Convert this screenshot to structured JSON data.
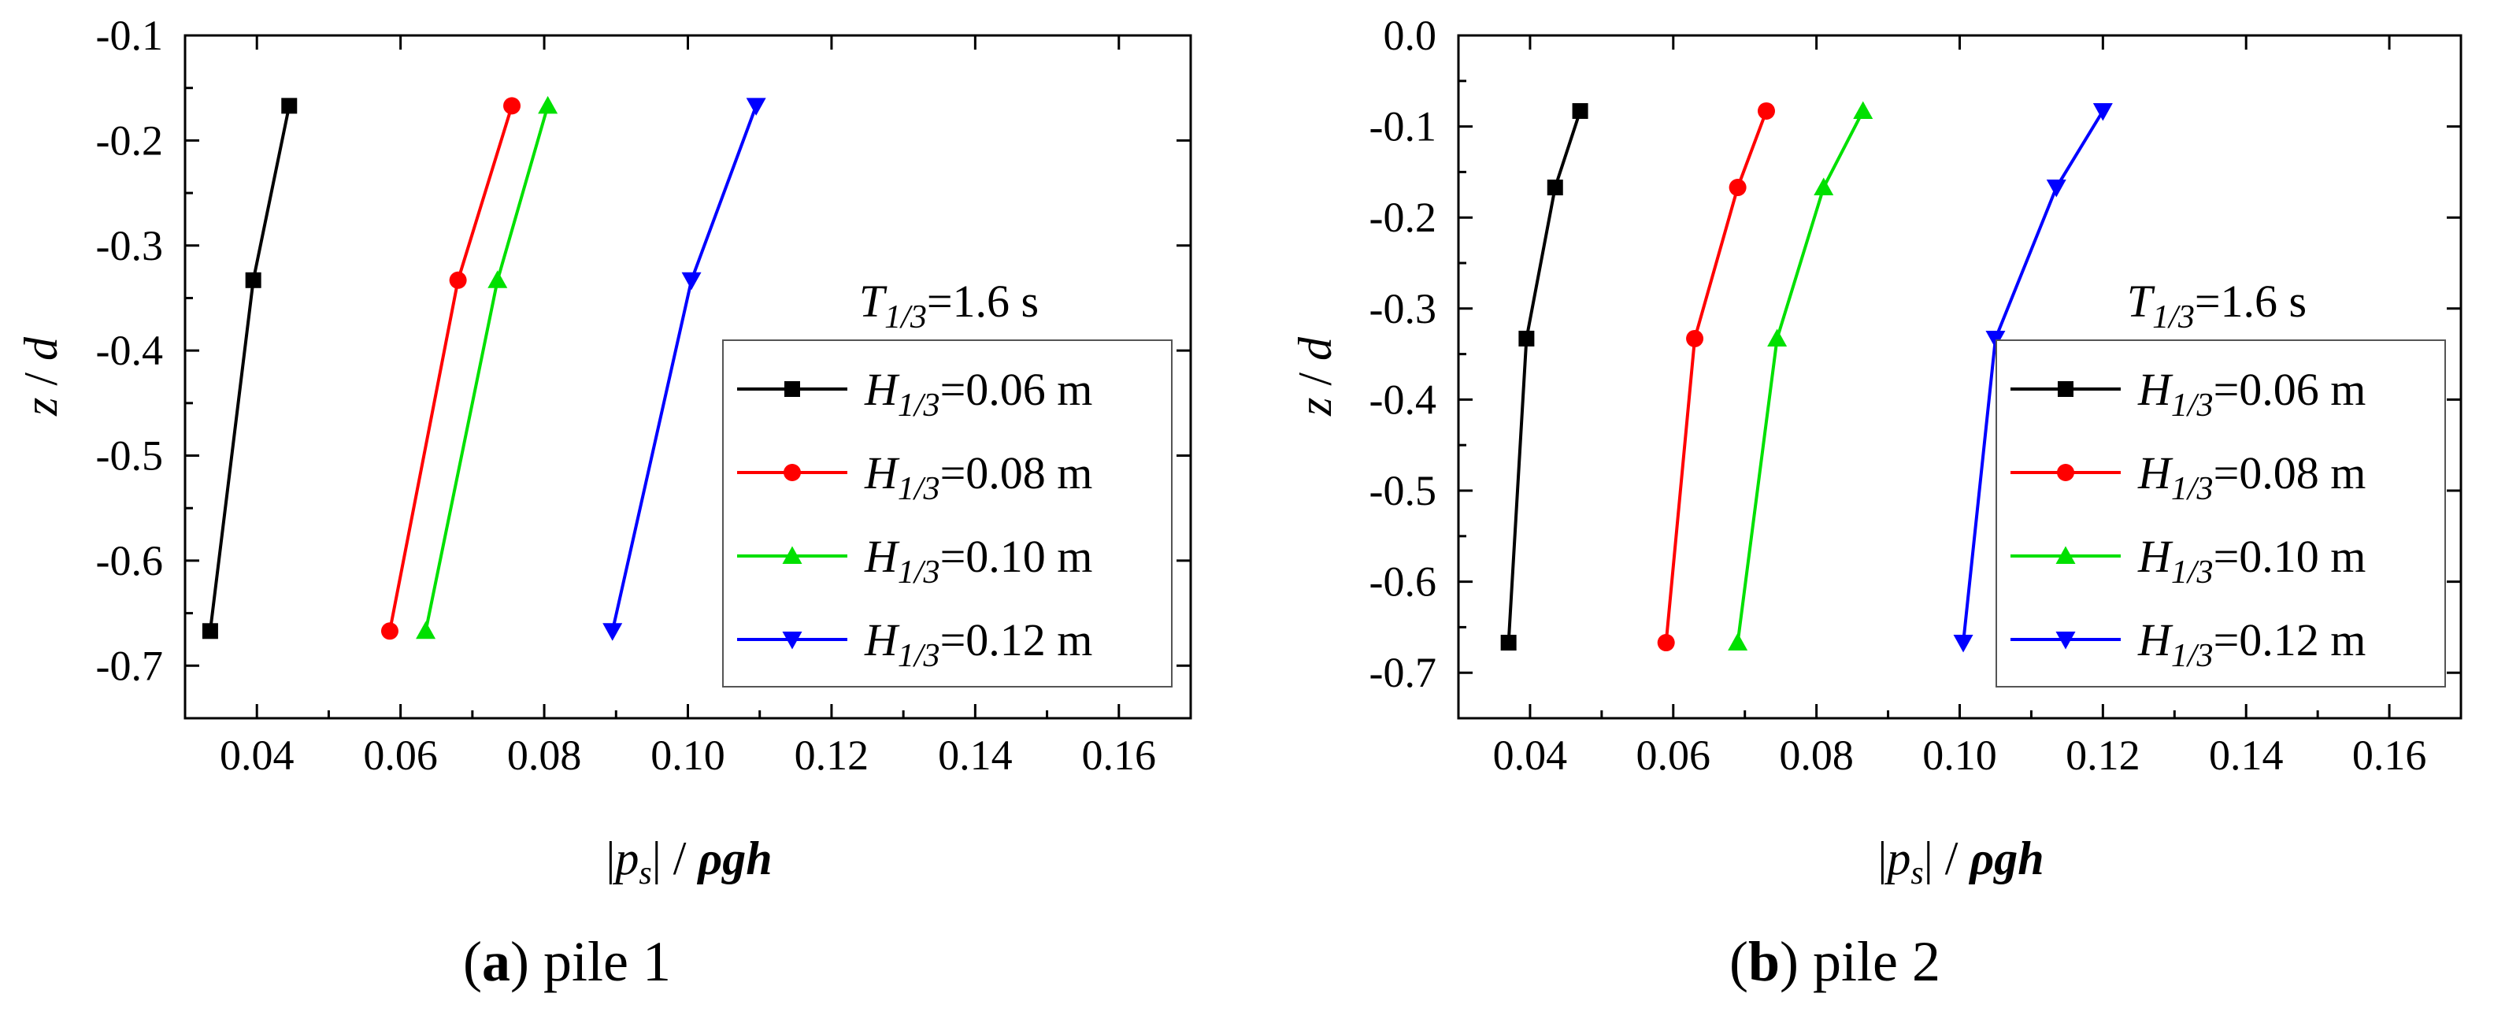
{
  "chart_data": [
    {
      "type": "line",
      "caption_letter": "(a)",
      "caption_text": " pile 1",
      "xlabel_parts": [
        "|",
        "p",
        "s",
        "| / ",
        "ρgh"
      ],
      "ylabel_parts": [
        "z",
        " / ",
        "d"
      ],
      "xlim": [
        0.03,
        0.17
      ],
      "ylim": [
        -0.75,
        -0.1
      ],
      "xticks": [
        0.04,
        0.06,
        0.08,
        0.1,
        0.12,
        0.14,
        0.16
      ],
      "xtick_labels": [
        "0.04",
        "0.06",
        "0.08",
        "0.10",
        "0.12",
        "0.14",
        "0.16"
      ],
      "yticks": [
        -0.1,
        -0.2,
        -0.3,
        -0.4,
        -0.5,
        -0.6,
        -0.7
      ],
      "ytick_labels": [
        "-0.1",
        "-0.2",
        "-0.3",
        "-0.4",
        "-0.5",
        "-0.6",
        "-0.7"
      ],
      "annotation": {
        "var": "T",
        "sub": "1/3",
        "rest": "=1.6 s"
      },
      "series": [
        {
          "name": "H1/3=0.06 m",
          "var": "H",
          "sub": "1/3",
          "value_text": "=0.06 m",
          "color": "#000000",
          "marker": "square",
          "x": [
            0.0445,
            0.0395,
            0.0335
          ],
          "y": [
            -0.167,
            -0.333,
            -0.667
          ]
        },
        {
          "name": "H1/3=0.08 m",
          "var": "H",
          "sub": "1/3",
          "value_text": "=0.08 m",
          "color": "#ff0000",
          "marker": "circle",
          "x": [
            0.0755,
            0.068,
            0.0585
          ],
          "y": [
            -0.167,
            -0.333,
            -0.667
          ]
        },
        {
          "name": "H1/3=0.10 m",
          "var": "H",
          "sub": "1/3",
          "value_text": "=0.10 m",
          "color": "#00e000",
          "marker": "triangle-up",
          "x": [
            0.0805,
            0.0735,
            0.0635
          ],
          "y": [
            -0.167,
            -0.333,
            -0.667
          ]
        },
        {
          "name": "H1/3=0.12 m",
          "var": "H",
          "sub": "1/3",
          "value_text": "=0.12 m",
          "color": "#0000ff",
          "marker": "triangle-down",
          "x": [
            0.1095,
            0.1005,
            0.0895
          ],
          "y": [
            -0.167,
            -0.333,
            -0.667
          ]
        }
      ]
    },
    {
      "type": "line",
      "caption_letter": "(b)",
      "caption_text": " pile 2",
      "xlabel_parts": [
        "|",
        "p",
        "s",
        "| / ",
        "ρgh"
      ],
      "ylabel_parts": [
        "z",
        " / ",
        "d"
      ],
      "xlim": [
        0.03,
        0.17
      ],
      "ylim": [
        -0.75,
        0.0
      ],
      "xticks": [
        0.04,
        0.06,
        0.08,
        0.1,
        0.12,
        0.14,
        0.16
      ],
      "xtick_labels": [
        "0.04",
        "0.06",
        "0.08",
        "0.10",
        "0.12",
        "0.14",
        "0.16"
      ],
      "yticks": [
        0.0,
        -0.1,
        -0.2,
        -0.3,
        -0.4,
        -0.5,
        -0.6,
        -0.7
      ],
      "ytick_labels": [
        "0.0",
        "-0.1",
        "-0.2",
        "-0.3",
        "-0.4",
        "-0.5",
        "-0.6",
        "-0.7"
      ],
      "annotation": {
        "var": "T",
        "sub": "1/3",
        "rest": "=1.6 s"
      },
      "series": [
        {
          "name": "H1/3=0.06 m",
          "var": "H",
          "sub": "1/3",
          "value_text": "=0.06 m",
          "color": "#000000",
          "marker": "square",
          "x": [
            0.047,
            0.0435,
            0.0395,
            0.037
          ],
          "y": [
            -0.083,
            -0.167,
            -0.333,
            -0.667
          ]
        },
        {
          "name": "H1/3=0.08 m",
          "var": "H",
          "sub": "1/3",
          "value_text": "=0.08 m",
          "color": "#ff0000",
          "marker": "circle",
          "x": [
            0.073,
            0.069,
            0.063,
            0.059
          ],
          "y": [
            -0.083,
            -0.167,
            -0.333,
            -0.667
          ]
        },
        {
          "name": "H1/3=0.10 m",
          "var": "H",
          "sub": "1/3",
          "value_text": "=0.10 m",
          "color": "#00e000",
          "marker": "triangle-up",
          "x": [
            0.0865,
            0.081,
            0.0745,
            0.069
          ],
          "y": [
            -0.083,
            -0.167,
            -0.333,
            -0.667
          ]
        },
        {
          "name": "H1/3=0.12 m",
          "var": "H",
          "sub": "1/3",
          "value_text": "=0.12 m",
          "color": "#0000ff",
          "marker": "triangle-down",
          "x": [
            0.12,
            0.1135,
            0.105,
            0.1005
          ],
          "y": [
            -0.083,
            -0.167,
            -0.333,
            -0.667
          ]
        }
      ]
    }
  ]
}
